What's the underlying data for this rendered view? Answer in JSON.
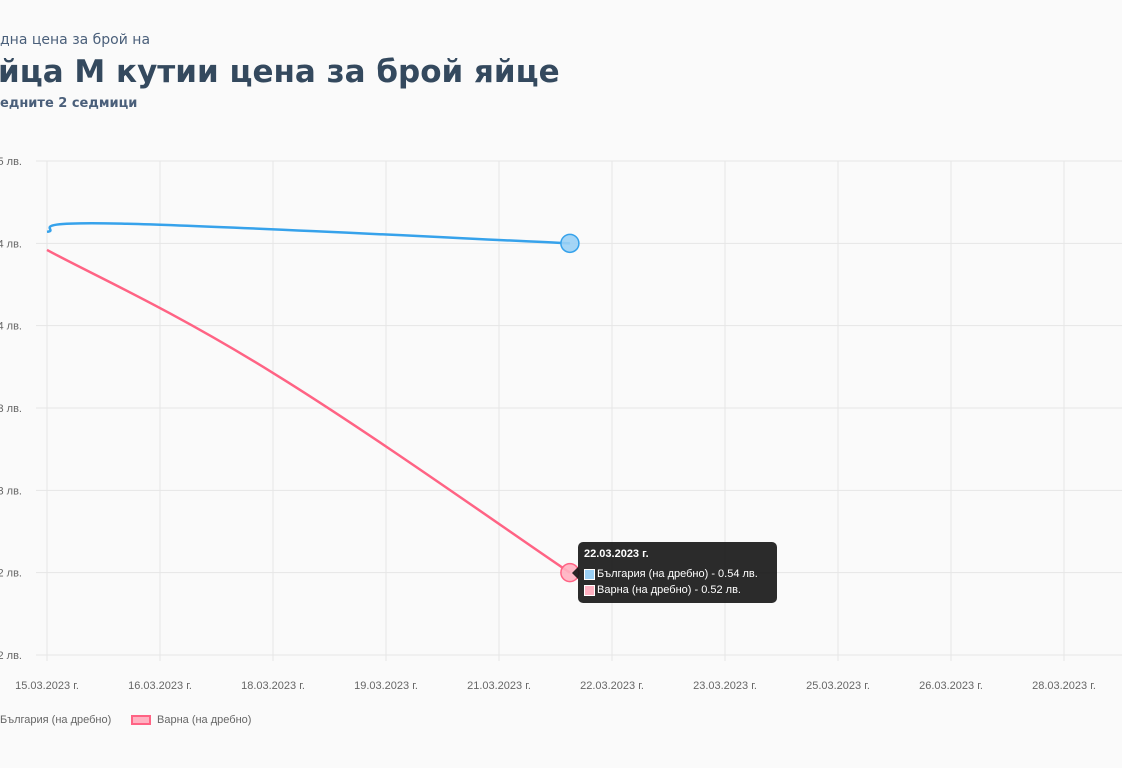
{
  "header": {
    "subtitle_top": "дна цена за брой на",
    "title": "йца М кутии цена за брой яйце",
    "subtitle_bottom": "едните 2 седмици"
  },
  "tooltip": {
    "date": "22.03.2023 г.",
    "rows": [
      {
        "text": "България (на дребно) - 0.54 лв.",
        "color": "#9ad0f5"
      },
      {
        "text": "Варна (на дребно) - 0.52 лв.",
        "color": "#ffb1c1"
      }
    ]
  },
  "legend": [
    {
      "label": "България (на дребно)",
      "color": "#36a2eb",
      "fill": "#9ad0f5"
    },
    {
      "label": "Варна (на дребно)",
      "color": "#ff6384",
      "fill": "#ffb1c1"
    }
  ],
  "chart_data": {
    "type": "line",
    "x_tick_labels": [
      "15.03.2023 г.",
      "16.03.2023 г.",
      "18.03.2023 г.",
      "19.03.2023 г.",
      "21.03.2023 г.",
      "22.03.2023 г.",
      "23.03.2023 г.",
      "25.03.2023 г.",
      "26.03.2023 г.",
      "28.03.2023 г."
    ],
    "y_ticks": [
      0.545,
      0.54,
      0.535,
      0.53,
      0.525,
      0.52,
      0.515
    ],
    "y_tick_labels": [
      "5 лв.",
      "4 лв.",
      "4 лв.",
      "3 лв.",
      "3 лв.",
      "2 лв.",
      "2 лв."
    ],
    "ylim": [
      0.515,
      0.545
    ],
    "grid": true,
    "legend_position": "bottom-left",
    "series": [
      {
        "name": "България (на дребно)",
        "color": "#36a2eb",
        "points": [
          [
            "15.03.2023",
            0.5407
          ],
          [
            "16.03.2023",
            0.5412
          ],
          [
            "22.03.2023",
            0.54
          ]
        ]
      },
      {
        "name": "Варна (на дребно)",
        "color": "#ff6384",
        "points": [
          [
            "15.03.2023",
            0.5396
          ],
          [
            "18.03.2023",
            0.5322
          ],
          [
            "22.03.2023",
            0.52
          ]
        ]
      }
    ]
  }
}
